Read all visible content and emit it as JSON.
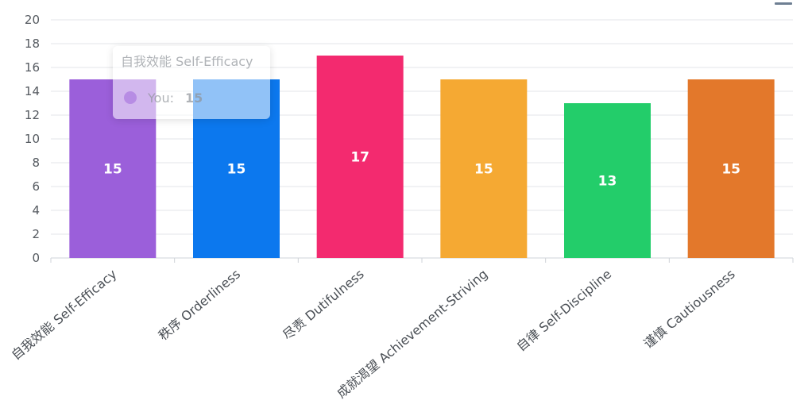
{
  "chart_data": {
    "type": "bar",
    "categories": [
      "自我效能 Self-Efficacy",
      "秩序 Orderliness",
      "尽责 Dutifulness",
      "成就渴望 Achievement-Striving",
      "自律 Self-Discipline",
      "谨慎 Cautiousness"
    ],
    "series": [
      {
        "name": "You",
        "values": [
          15,
          15,
          17,
          15,
          13,
          15
        ]
      }
    ],
    "colors": [
      "#9b5fda",
      "#0c78ee",
      "#f32a6f",
      "#f5a933",
      "#23cd6a",
      "#e3782b"
    ],
    "ylim": [
      0,
      20
    ],
    "yticks": [
      0,
      2,
      4,
      6,
      8,
      10,
      12,
      14,
      16,
      18,
      20
    ],
    "grid": true,
    "legend": "none",
    "xlabel": "",
    "ylabel": ""
  },
  "tooltip": {
    "title": "自我效能 Self-Efficacy",
    "series_label": "You:",
    "value": "15",
    "dot_color": "#9b5fda"
  },
  "toolbar": {
    "icon": "menu-icon"
  }
}
